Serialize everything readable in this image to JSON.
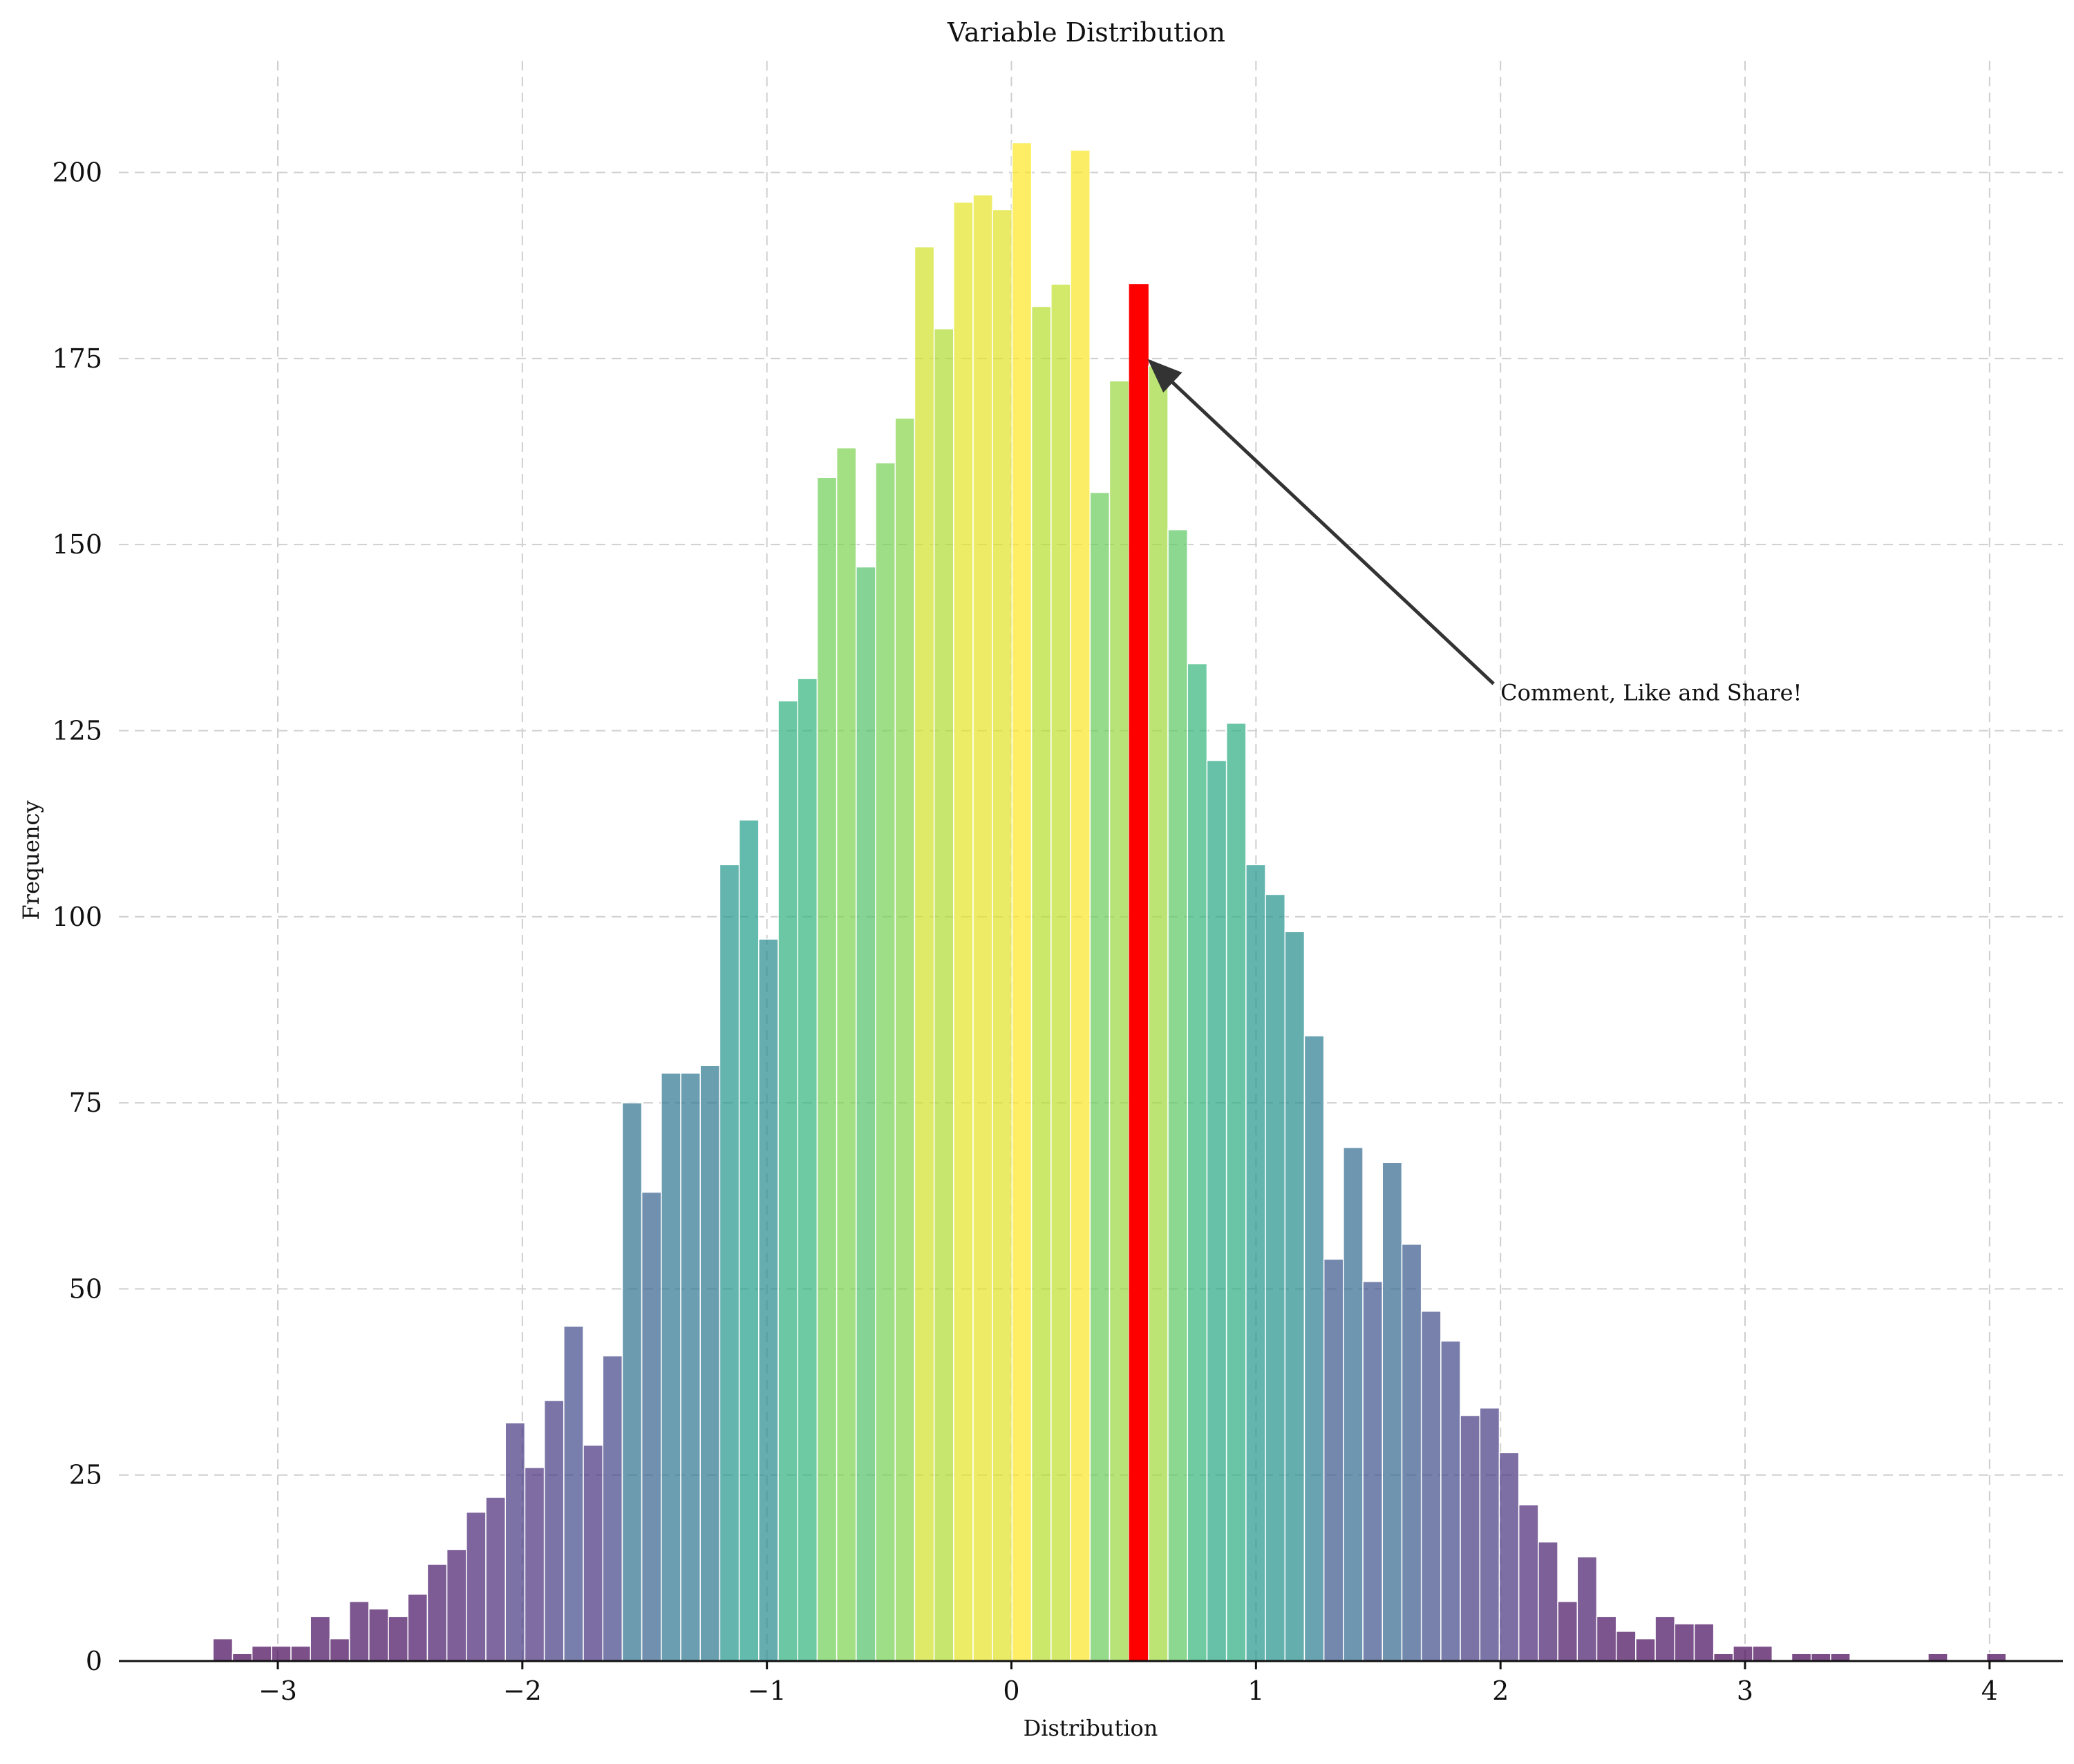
{
  "chart_data": {
    "type": "bar",
    "title": "Variable Distribution",
    "xlabel": "Distribution",
    "ylabel": "Frequency",
    "xlim": [
      -3.65,
      4.3
    ],
    "ylim": [
      0,
      215
    ],
    "grid": true,
    "bin_width": 0.0797,
    "first_bin_left": -3.265,
    "xticks": [
      -3,
      -2,
      -1,
      0,
      1,
      2,
      3,
      4
    ],
    "xtick_labels": [
      "−3",
      "−2",
      "−1",
      "0",
      "1",
      "2",
      "3",
      "4"
    ],
    "yticks": [
      0,
      25,
      50,
      75,
      100,
      125,
      150,
      175,
      200
    ],
    "ytick_labels": [
      "0",
      "25",
      "50",
      "75",
      "100",
      "125",
      "150",
      "175",
      "200"
    ],
    "values": [
      3,
      1,
      2,
      2,
      2,
      6,
      3,
      8,
      7,
      6,
      9,
      13,
      15,
      20,
      22,
      32,
      26,
      35,
      45,
      29,
      41,
      75,
      63,
      79,
      79,
      80,
      107,
      113,
      97,
      129,
      132,
      159,
      163,
      147,
      161,
      167,
      190,
      179,
      196,
      197,
      195,
      204,
      182,
      185,
      203,
      157,
      172,
      185,
      174,
      152,
      134,
      121,
      126,
      107,
      103,
      98,
      84,
      54,
      69,
      51,
      67,
      56,
      47,
      43,
      33,
      34,
      28,
      21,
      16,
      8,
      14,
      6,
      4,
      3,
      6,
      5,
      5,
      1,
      2,
      2,
      0,
      1,
      1,
      1,
      0,
      0,
      0,
      0,
      1,
      0,
      0,
      1
    ],
    "highlight_index": 47,
    "highlight_color": "#ff0000",
    "colormap": "viridis",
    "annotation": {
      "text": "Comment, Like and Share!",
      "xy": [
        0.55,
        175
      ],
      "xytext": [
        2.0,
        130
      ]
    }
  }
}
